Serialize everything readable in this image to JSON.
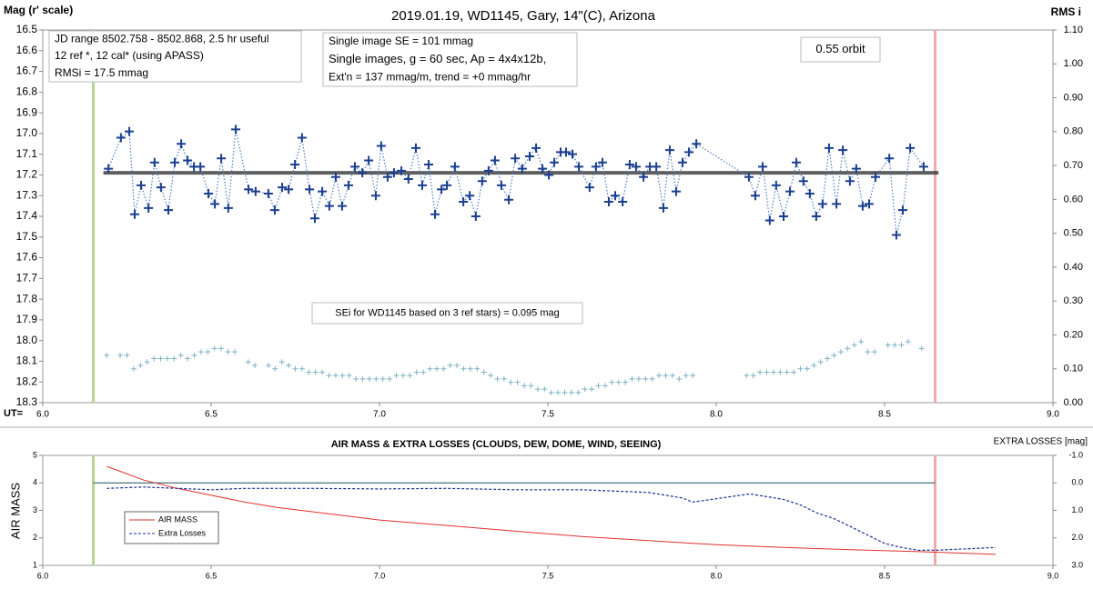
{
  "chart_data": [
    {
      "type": "scatter",
      "title": "2019.01.19, WD1145, Gary, 14\"(C), Arizona",
      "y_label": "Mag (r' scale)",
      "y2_label": "RMS i",
      "x_label": "UT=",
      "xlim": [
        6.0,
        9.0
      ],
      "xticks": [
        {
          "value": 6,
          "label": "6.0"
        },
        6.5,
        {
          "value": 7,
          "label": "7.0"
        },
        7.5,
        {
          "value": 8,
          "label": "8.0"
        },
        8.5,
        {
          "value": 9,
          "label": "9.0"
        }
      ],
      "ylim": [
        18.3,
        16.5
      ],
      "yticks": [
        16.5,
        16.6,
        16.7,
        16.8,
        16.9,
        {
          "value": 17,
          "label": "17.0"
        },
        17.1,
        17.2,
        17.3,
        17.4,
        17.5,
        17.6,
        17.7,
        17.8,
        17.9,
        {
          "value": 18,
          "label": "18.0"
        },
        18.1,
        18.2,
        18.3
      ],
      "y2lim": [
        0,
        1.1
      ],
      "y2ticks": [
        {
          "value": 1.1,
          "label": "1.10"
        },
        {
          "value": 1,
          "label": "1.00"
        },
        {
          "value": 0.9,
          "label": "0.90"
        },
        {
          "value": 0.8,
          "label": "0.80"
        },
        {
          "value": 0.7,
          "label": "0.70"
        },
        {
          "value": 0.6,
          "label": "0.60"
        },
        {
          "value": 0.5,
          "label": "0.50"
        },
        {
          "value": 0.4,
          "label": "0.40"
        },
        {
          "value": 0.3,
          "label": "0.30"
        },
        {
          "value": 0.2,
          "label": "0.20"
        },
        {
          "value": 0.1,
          "label": "0.10"
        },
        {
          "value": 0,
          "label": "0.00"
        }
      ],
      "grid": false,
      "vlines": [
        {
          "x": 6.15,
          "color": "#b7d68f"
        },
        {
          "x": 8.65,
          "color": "#f2a9a9"
        }
      ],
      "trend": {
        "y": 17.19,
        "x": [
          6.18,
          8.66
        ],
        "color": "#444444"
      },
      "annotations": [
        {
          "lines": [
            "JD range 8502.758 - 8502.868, 2.5 hr useful",
            "12 ref *, 12 cal* (using APASS)",
            "RMSi = 17.5 mmag"
          ]
        },
        {
          "lines": [
            "Single image SE = 101 mmag",
            "Single images, g = 60 sec, Ap = 4x4x12b,",
            "Ext'n = 137 mmag/m, trend = +0 mmag/hr"
          ]
        },
        {
          "lines": [
            "0.55 orbit"
          ]
        },
        {
          "lines": [
            "SEi for WD1145 based on 3 ref stars) = 0.095 mag"
          ]
        }
      ],
      "series": [
        {
          "color": "#1b3f8f",
          "line_color": "#4d7cc9",
          "marker": "plus",
          "line": "dotted",
          "x": [
            6.195,
            6.232,
            6.257,
            6.273,
            6.292,
            6.314,
            6.332,
            6.351,
            6.373,
            6.392,
            6.411,
            6.43,
            6.449,
            6.468,
            6.492,
            6.511,
            6.53,
            6.551,
            6.573,
            6.611,
            6.632,
            6.67,
            6.689,
            6.711,
            6.73,
            6.749,
            6.77,
            6.792,
            6.808,
            6.83,
            6.851,
            6.87,
            6.889,
            6.908,
            6.927,
            6.949,
            6.968,
            6.989,
            7.005,
            7.024,
            7.043,
            7.065,
            7.086,
            7.108,
            7.127,
            7.146,
            7.165,
            7.184,
            7.2,
            7.224,
            7.249,
            7.268,
            7.286,
            7.305,
            7.324,
            7.343,
            7.362,
            7.384,
            7.403,
            7.424,
            7.446,
            7.465,
            7.484,
            7.503,
            7.519,
            7.538,
            7.554,
            7.573,
            7.592,
            7.624,
            7.643,
            7.662,
            7.681,
            7.7,
            7.722,
            7.743,
            7.762,
            7.784,
            7.803,
            7.822,
            7.843,
            7.862,
            7.881,
            7.9,
            7.919,
            7.941,
            8.097,
            8.116,
            8.138,
            8.159,
            8.178,
            8.2,
            8.219,
            8.238,
            8.259,
            8.278,
            8.297,
            8.316,
            8.335,
            8.357,
            8.376,
            8.397,
            8.416,
            8.435,
            8.454,
            8.473,
            8.514,
            8.535,
            8.554,
            8.576,
            8.616
          ],
          "values": [
            17.17,
            17.02,
            16.99,
            17.39,
            17.25,
            17.36,
            17.14,
            17.26,
            17.37,
            17.14,
            17.05,
            17.13,
            17.16,
            17.16,
            17.29,
            17.34,
            17.12,
            17.36,
            16.98,
            17.27,
            17.28,
            17.29,
            17.37,
            17.26,
            17.27,
            17.15,
            17.02,
            17.27,
            17.41,
            17.28,
            17.35,
            17.21,
            17.35,
            17.25,
            17.16,
            17.19,
            17.13,
            17.3,
            17.06,
            17.21,
            17.19,
            17.18,
            17.22,
            17.07,
            17.25,
            17.15,
            17.39,
            17.27,
            17.25,
            17.16,
            17.33,
            17.3,
            17.4,
            17.23,
            17.18,
            17.13,
            17.25,
            17.32,
            17.12,
            17.17,
            17.11,
            17.07,
            17.17,
            17.2,
            17.14,
            17.09,
            17.09,
            17.1,
            17.16,
            17.26,
            17.16,
            17.14,
            17.33,
            17.3,
            17.33,
            17.15,
            17.16,
            17.21,
            17.16,
            17.16,
            17.36,
            17.08,
            17.28,
            17.14,
            17.09,
            17.05,
            17.21,
            17.3,
            17.16,
            17.42,
            17.25,
            17.4,
            17.28,
            17.14,
            17.23,
            17.29,
            17.4,
            17.34,
            17.07,
            17.34,
            17.08,
            17.23,
            17.17,
            17.35,
            17.34,
            17.21,
            17.12,
            17.49,
            17.37,
            17.07,
            17.16
          ]
        },
        {
          "color": "#7fb3c4",
          "marker": "small-plus",
          "line": "none",
          "axis": "y2",
          "x": [
            6.19,
            6.23,
            6.25,
            6.27,
            6.29,
            6.31,
            6.33,
            6.35,
            6.37,
            6.39,
            6.41,
            6.43,
            6.45,
            6.47,
            6.49,
            6.51,
            6.53,
            6.55,
            6.57,
            6.61,
            6.63,
            6.67,
            6.69,
            6.71,
            6.73,
            6.75,
            6.77,
            6.79,
            6.81,
            6.83,
            6.85,
            6.87,
            6.89,
            6.91,
            6.93,
            6.95,
            6.97,
            6.99,
            7.01,
            7.03,
            7.05,
            7.07,
            7.09,
            7.11,
            7.13,
            7.15,
            7.17,
            7.19,
            7.21,
            7.23,
            7.25,
            7.27,
            7.29,
            7.31,
            7.33,
            7.35,
            7.37,
            7.39,
            7.41,
            7.43,
            7.45,
            7.47,
            7.49,
            7.51,
            7.53,
            7.55,
            7.57,
            7.59,
            7.61,
            7.63,
            7.65,
            7.67,
            7.69,
            7.71,
            7.73,
            7.75,
            7.77,
            7.79,
            7.81,
            7.83,
            7.85,
            7.87,
            7.89,
            7.91,
            7.93,
            8.09,
            8.11,
            8.13,
            8.15,
            8.17,
            8.19,
            8.21,
            8.23,
            8.25,
            8.27,
            8.29,
            8.31,
            8.33,
            8.35,
            8.37,
            8.39,
            8.41,
            8.43,
            8.45,
            8.47,
            8.51,
            8.53,
            8.55,
            8.57,
            8.61
          ],
          "values": [
            0.14,
            0.14,
            0.14,
            0.1,
            0.11,
            0.12,
            0.13,
            0.13,
            0.13,
            0.13,
            0.14,
            0.13,
            0.14,
            0.15,
            0.15,
            0.16,
            0.16,
            0.15,
            0.15,
            0.12,
            0.11,
            0.11,
            0.1,
            0.12,
            0.11,
            0.1,
            0.1,
            0.09,
            0.09,
            0.09,
            0.08,
            0.08,
            0.08,
            0.08,
            0.07,
            0.07,
            0.07,
            0.07,
            0.07,
            0.07,
            0.08,
            0.08,
            0.08,
            0.09,
            0.09,
            0.1,
            0.1,
            0.1,
            0.11,
            0.11,
            0.1,
            0.1,
            0.1,
            0.09,
            0.08,
            0.07,
            0.07,
            0.06,
            0.06,
            0.05,
            0.05,
            0.04,
            0.04,
            0.03,
            0.03,
            0.03,
            0.03,
            0.03,
            0.04,
            0.04,
            0.05,
            0.05,
            0.06,
            0.06,
            0.06,
            0.07,
            0.07,
            0.07,
            0.07,
            0.08,
            0.08,
            0.08,
            0.07,
            0.08,
            0.08,
            0.08,
            0.08,
            0.09,
            0.09,
            0.09,
            0.09,
            0.09,
            0.09,
            0.1,
            0.1,
            0.11,
            0.12,
            0.13,
            0.14,
            0.15,
            0.16,
            0.17,
            0.18,
            0.15,
            0.15,
            0.17,
            0.17,
            0.17,
            0.18,
            0.16
          ]
        }
      ]
    },
    {
      "type": "line",
      "title": "AIR MASS & EXTRA LOSSES (CLOUDS, DEW, DOME, WIND, SEEING)",
      "y_label": "AIR MASS",
      "y2_label": "EXTRA LOSSES [mag]",
      "xlim": [
        6.0,
        9.0
      ],
      "xticks": [
        {
          "value": 6,
          "label": "6.0"
        },
        6.5,
        {
          "value": 7,
          "label": "7.0"
        },
        7.5,
        {
          "value": 8,
          "label": "8.0"
        },
        8.5,
        {
          "value": 9,
          "label": "9.0"
        }
      ],
      "ylim": [
        1,
        5
      ],
      "yticks": [
        1,
        2,
        3,
        4,
        5
      ],
      "y2lim": [
        3.0,
        -1.0
      ],
      "y2ticks": [
        {
          "value": -1,
          "label": "-1.0"
        },
        {
          "value": 0,
          "label": "0.0"
        },
        {
          "value": 1,
          "label": "1.0"
        },
        {
          "value": 2,
          "label": "2.0"
        },
        {
          "value": 3,
          "label": "3.0"
        }
      ],
      "legend": "lower-left",
      "vlines": [
        {
          "x": 6.15,
          "color": "#b7d68f"
        },
        {
          "x": 8.65,
          "color": "#f2a9a9"
        }
      ],
      "hline": {
        "y2": 0,
        "x": [
          6.15,
          8.65
        ],
        "color": "#1f4e5f"
      },
      "series": [
        {
          "name": "AIR MASS",
          "color": "#e0322b",
          "line": "solid",
          "x": [
            6.19,
            6.3,
            6.4,
            6.5,
            6.6,
            6.7,
            6.8,
            6.9,
            7.0,
            7.2,
            7.4,
            7.6,
            7.8,
            8.0,
            8.2,
            8.4,
            8.6,
            8.83
          ],
          "values": [
            4.6,
            4.1,
            3.8,
            3.55,
            3.3,
            3.1,
            2.95,
            2.8,
            2.65,
            2.45,
            2.25,
            2.05,
            1.9,
            1.75,
            1.65,
            1.57,
            1.5,
            1.4
          ]
        },
        {
          "name": "Extra Losses",
          "color": "#1a2f8f",
          "line": "dashed",
          "axis": "y2",
          "x": [
            6.19,
            6.3,
            6.4,
            6.5,
            6.6,
            6.7,
            6.8,
            7.0,
            7.2,
            7.4,
            7.6,
            7.8,
            7.85,
            7.9,
            7.93,
            8.1,
            8.2,
            8.25,
            8.3,
            8.35,
            8.4,
            8.45,
            8.5,
            8.55,
            8.6,
            8.65,
            8.83
          ],
          "values": [
            0.2,
            0.15,
            0.2,
            0.25,
            0.2,
            0.2,
            0.2,
            0.22,
            0.2,
            0.25,
            0.25,
            0.35,
            0.45,
            0.55,
            0.7,
            0.4,
            0.6,
            0.8,
            1.1,
            1.3,
            1.6,
            1.9,
            2.2,
            2.35,
            2.45,
            2.45,
            2.35
          ]
        }
      ]
    }
  ]
}
